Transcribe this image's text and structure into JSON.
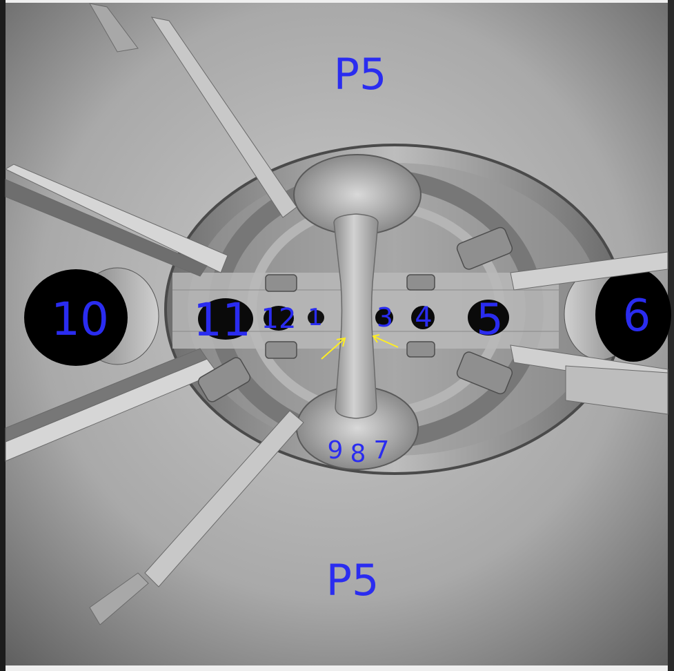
{
  "labels": {
    "top_port": "P5",
    "bottom_port": "P5",
    "ports": [
      {
        "id": "port-1",
        "text": "1"
      },
      {
        "id": "port-2",
        "text": "2"
      },
      {
        "id": "port-3",
        "text": "3"
      },
      {
        "id": "port-4",
        "text": "4"
      },
      {
        "id": "port-5",
        "text": "5"
      },
      {
        "id": "port-6",
        "text": "6"
      },
      {
        "id": "port-7",
        "text": "7"
      },
      {
        "id": "port-8",
        "text": "8"
      },
      {
        "id": "port-9",
        "text": "9"
      },
      {
        "id": "port-10",
        "text": "10"
      },
      {
        "id": "port-11",
        "text": "11"
      },
      {
        "id": "port-12",
        "text": "12"
      }
    ]
  },
  "colors": {
    "label": "#2a2cf0",
    "arrow": "#ffee22",
    "hole": "#000000",
    "background": "#efefef"
  }
}
